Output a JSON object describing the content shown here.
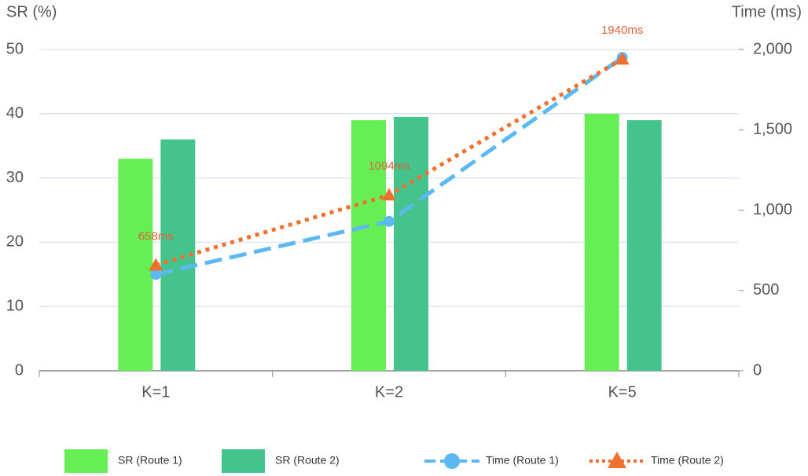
{
  "chart_data": {
    "type": "bar",
    "y_label": "SR (%)",
    "y2_label": "Time (ms)",
    "categories": [
      "K=1",
      "K=2",
      "K=5"
    ],
    "ylim": [
      0,
      50
    ],
    "yticks": [
      0,
      10,
      20,
      30,
      40,
      50
    ],
    "y2lim": [
      0,
      2000
    ],
    "y2ticks": [
      0,
      500,
      {
        "value": 1000,
        "label": "1,000"
      },
      {
        "value": 1500,
        "label": "1,500"
      },
      {
        "value": 2000,
        "label": "2,000"
      }
    ],
    "grid": true,
    "legend": "bottom",
    "series": [
      {
        "name": "SR (Route 1)",
        "type": "bar",
        "color": "#66ee55",
        "values": [
          33,
          39,
          40
        ]
      },
      {
        "name": "SR (Route 2)",
        "type": "bar",
        "color": "#44c48c",
        "values": [
          36,
          39.5,
          39
        ]
      },
      {
        "name": "Time (Route 1)",
        "type": "line",
        "axis": "y2",
        "color": "#5bb8f0",
        "dash": "dashed",
        "marker": "circle",
        "values": [
          600,
          930,
          1950
        ]
      },
      {
        "name": "Time (Route 2)",
        "type": "line",
        "axis": "y2",
        "color": "#f07030",
        "dash": "dotted",
        "marker": "triangle",
        "values": [
          658,
          1094,
          1940
        ],
        "value_labels": [
          "658ms",
          "1094ms",
          "1940ms"
        ]
      }
    ]
  }
}
